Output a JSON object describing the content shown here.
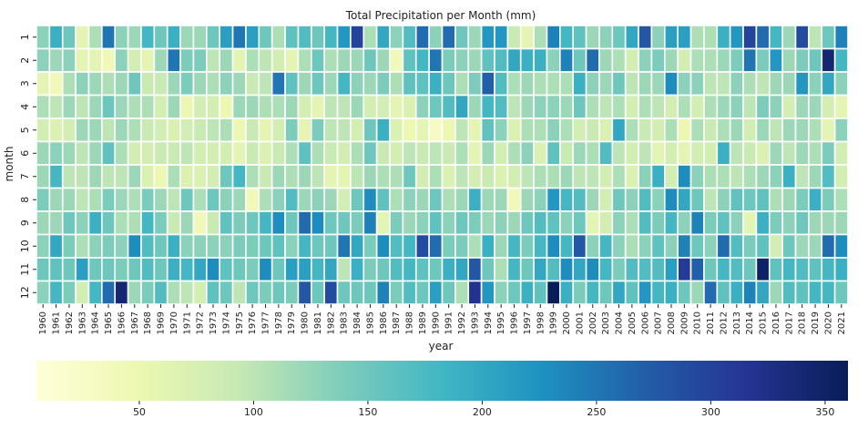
{
  "chart_data": {
    "type": "heatmap",
    "title": "Total Precipitation per Month (mm)",
    "xlabel": "year",
    "ylabel": "month",
    "x": [
      1960,
      1961,
      1962,
      1963,
      1964,
      1965,
      1966,
      1967,
      1968,
      1969,
      1970,
      1971,
      1972,
      1973,
      1974,
      1975,
      1976,
      1977,
      1978,
      1979,
      1980,
      1981,
      1982,
      1983,
      1984,
      1985,
      1986,
      1987,
      1988,
      1989,
      1990,
      1991,
      1992,
      1993,
      1994,
      1995,
      1996,
      1997,
      1998,
      1999,
      2000,
      2001,
      2002,
      2003,
      2004,
      2005,
      2006,
      2007,
      2008,
      2009,
      2010,
      2011,
      2012,
      2013,
      2014,
      2015,
      2016,
      2017,
      2018,
      2019,
      2020,
      2021
    ],
    "y": [
      1,
      2,
      3,
      4,
      5,
      6,
      7,
      8,
      9,
      10,
      11,
      12
    ],
    "values": [
      [
        130,
        190,
        150,
        60,
        110,
        250,
        130,
        120,
        180,
        150,
        190,
        120,
        120,
        150,
        210,
        250,
        210,
        150,
        110,
        160,
        170,
        150,
        180,
        220,
        300,
        110,
        200,
        130,
        170,
        260,
        130,
        260,
        150,
        120,
        220,
        220,
        90,
        60,
        110,
        240,
        180,
        160,
        120,
        130,
        150,
        200,
        280,
        130,
        210,
        210,
        110,
        110,
        190,
        220,
        300,
        260,
        180,
        120,
        290,
        100,
        150,
        240
      ],
      [
        130,
        120,
        130,
        60,
        60,
        40,
        130,
        80,
        60,
        120,
        250,
        140,
        140,
        100,
        120,
        60,
        110,
        100,
        80,
        60,
        110,
        150,
        110,
        120,
        120,
        150,
        120,
        40,
        160,
        180,
        250,
        140,
        130,
        120,
        160,
        170,
        200,
        190,
        190,
        130,
        240,
        150,
        260,
        120,
        110,
        80,
        130,
        140,
        120,
        80,
        110,
        110,
        120,
        140,
        250,
        140,
        220,
        120,
        140,
        150,
        340,
        180
      ],
      [
        60,
        40,
        110,
        130,
        120,
        110,
        120,
        150,
        90,
        90,
        120,
        140,
        120,
        110,
        130,
        120,
        90,
        100,
        250,
        160,
        120,
        150,
        120,
        180,
        130,
        120,
        140,
        110,
        160,
        160,
        190,
        150,
        110,
        140,
        270,
        170,
        110,
        120,
        110,
        110,
        110,
        190,
        130,
        120,
        150,
        100,
        120,
        120,
        230,
        130,
        130,
        100,
        100,
        130,
        110,
        100,
        120,
        120,
        220,
        130,
        200,
        130
      ],
      [
        110,
        100,
        120,
        100,
        120,
        150,
        120,
        110,
        110,
        80,
        120,
        50,
        80,
        80,
        50,
        120,
        120,
        110,
        110,
        120,
        80,
        60,
        100,
        100,
        120,
        80,
        80,
        60,
        70,
        130,
        150,
        170,
        200,
        120,
        180,
        170,
        100,
        120,
        130,
        130,
        120,
        150,
        110,
        100,
        110,
        80,
        110,
        100,
        80,
        110,
        80,
        110,
        120,
        130,
        100,
        140,
        130,
        80,
        120,
        120,
        80,
        60
      ],
      [
        80,
        70,
        80,
        120,
        120,
        100,
        120,
        110,
        90,
        80,
        70,
        80,
        90,
        100,
        110,
        50,
        90,
        60,
        80,
        140,
        60,
        140,
        100,
        100,
        80,
        150,
        190,
        70,
        50,
        60,
        30,
        50,
        100,
        60,
        160,
        130,
        70,
        110,
        110,
        130,
        110,
        80,
        90,
        70,
        200,
        110,
        90,
        80,
        110,
        50,
        110,
        90,
        110,
        120,
        80,
        120,
        100,
        120,
        120,
        110,
        60,
        130
      ],
      [
        120,
        130,
        120,
        100,
        120,
        160,
        110,
        80,
        80,
        90,
        90,
        100,
        80,
        80,
        80,
        60,
        90,
        70,
        90,
        110,
        160,
        110,
        90,
        80,
        110,
        150,
        90,
        80,
        100,
        90,
        100,
        90,
        110,
        60,
        120,
        80,
        110,
        130,
        70,
        160,
        90,
        120,
        110,
        170,
        100,
        80,
        100,
        60,
        80,
        60,
        80,
        80,
        190,
        100,
        90,
        70,
        120,
        100,
        120,
        110,
        140,
        80
      ],
      [
        120,
        180,
        100,
        100,
        120,
        100,
        100,
        120,
        70,
        50,
        110,
        70,
        70,
        80,
        150,
        180,
        110,
        90,
        120,
        110,
        120,
        100,
        60,
        60,
        100,
        120,
        110,
        110,
        150,
        80,
        110,
        70,
        100,
        80,
        90,
        70,
        80,
        100,
        110,
        110,
        120,
        100,
        100,
        80,
        110,
        70,
        130,
        190,
        80,
        230,
        130,
        110,
        110,
        100,
        110,
        120,
        130,
        190,
        100,
        120,
        170,
        80
      ],
      [
        140,
        120,
        120,
        100,
        110,
        140,
        120,
        110,
        140,
        120,
        100,
        150,
        110,
        150,
        130,
        120,
        40,
        110,
        130,
        170,
        120,
        130,
        120,
        80,
        150,
        230,
        160,
        110,
        130,
        120,
        150,
        110,
        120,
        190,
        120,
        120,
        40,
        120,
        130,
        220,
        180,
        170,
        120,
        80,
        150,
        130,
        170,
        130,
        230,
        200,
        150,
        100,
        130,
        160,
        150,
        160,
        110,
        120,
        140,
        190,
        140,
        110
      ],
      [
        120,
        120,
        150,
        130,
        190,
        150,
        110,
        110,
        180,
        140,
        90,
        120,
        40,
        90,
        160,
        140,
        150,
        180,
        230,
        150,
        260,
        230,
        150,
        150,
        140,
        240,
        60,
        140,
        120,
        130,
        160,
        130,
        150,
        140,
        120,
        130,
        120,
        150,
        170,
        160,
        130,
        150,
        60,
        80,
        130,
        110,
        170,
        140,
        180,
        130,
        240,
        140,
        160,
        130,
        60,
        190,
        140,
        130,
        150,
        120,
        120,
        120
      ],
      [
        130,
        200,
        140,
        110,
        130,
        140,
        130,
        230,
        170,
        150,
        190,
        130,
        130,
        130,
        130,
        140,
        140,
        150,
        160,
        130,
        180,
        150,
        150,
        250,
        200,
        140,
        230,
        170,
        180,
        290,
        260,
        140,
        140,
        110,
        190,
        120,
        180,
        140,
        180,
        230,
        180,
        280,
        130,
        180,
        130,
        110,
        130,
        160,
        130,
        240,
        150,
        130,
        260,
        170,
        140,
        160,
        80,
        150,
        120,
        120,
        260,
        230
      ],
      [
        150,
        160,
        150,
        210,
        150,
        150,
        140,
        150,
        170,
        150,
        190,
        180,
        200,
        230,
        160,
        150,
        140,
        230,
        150,
        210,
        210,
        180,
        200,
        100,
        190,
        140,
        150,
        170,
        180,
        160,
        150,
        190,
        200,
        280,
        150,
        110,
        180,
        150,
        200,
        170,
        230,
        200,
        230,
        180,
        140,
        170,
        170,
        170,
        210,
        310,
        270,
        150,
        180,
        170,
        150,
        350,
        160,
        180,
        170,
        160,
        180,
        190
      ],
      [
        130,
        180,
        140,
        80,
        180,
        260,
        340,
        120,
        140,
        170,
        110,
        100,
        80,
        160,
        150,
        100,
        150,
        140,
        150,
        140,
        280,
        150,
        290,
        150,
        150,
        150,
        240,
        140,
        170,
        150,
        210,
        150,
        110,
        320,
        220,
        130,
        150,
        190,
        160,
        360,
        190,
        140,
        180,
        150,
        200,
        160,
        220,
        180,
        190,
        150,
        120,
        260,
        160,
        190,
        240,
        200,
        120,
        170,
        160,
        180,
        180,
        150
      ]
    ],
    "colorbar": {
      "ticks": [
        50,
        100,
        150,
        200,
        250,
        300,
        350
      ],
      "range": [
        5,
        360
      ],
      "colormap": "YlGnBu",
      "stops": [
        "#ffffd9",
        "#edf8b1",
        "#c7e9b4",
        "#7fcdbb",
        "#41b6c4",
        "#1d91c0",
        "#225ea8",
        "#253494",
        "#081d58"
      ]
    },
    "grid": "white cell separators",
    "legend": "colorbar-bottom"
  }
}
